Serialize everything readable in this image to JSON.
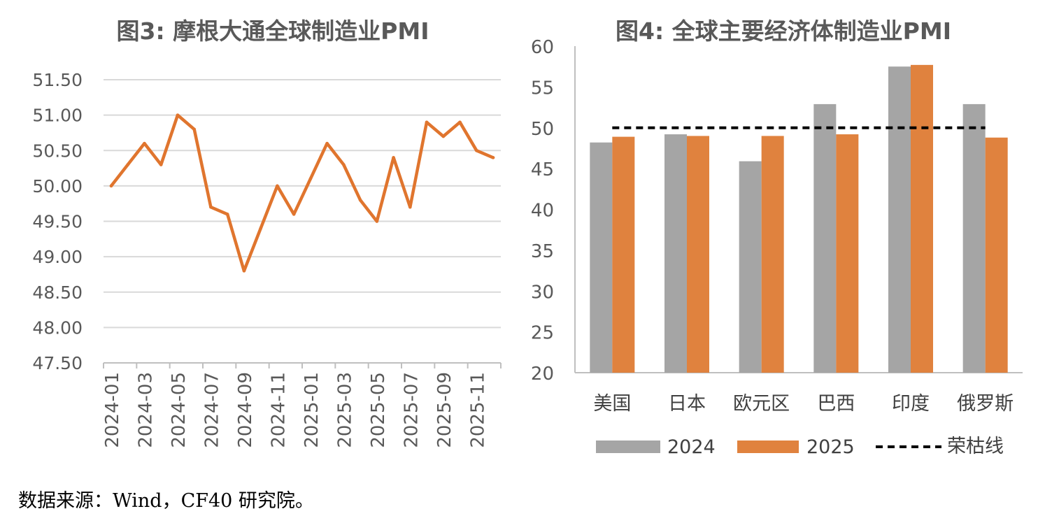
{
  "colors": {
    "line": "#E0752E",
    "bar2024": "#A5A5A5",
    "bar2025": "#E0823E",
    "threshold": "#000000",
    "grid": "#D9D9D9",
    "axis": "#BFBFBF",
    "text": "#595959"
  },
  "chart_data": [
    {
      "type": "line",
      "title": "图3: 摩根大通全球制造业PMI",
      "ylim": [
        47.5,
        51.5
      ],
      "yticks": [
        "47.50",
        "48.00",
        "48.50",
        "49.00",
        "49.50",
        "50.00",
        "50.50",
        "51.00",
        "51.50"
      ],
      "grid": true,
      "xtick_labels": [
        "2024-01",
        "2024-03",
        "2024-05",
        "2024-07",
        "2024-09",
        "2024-11",
        "2025-01",
        "2025-03",
        "2025-05",
        "2025-07",
        "2025-09",
        "2025-11"
      ],
      "x": [
        "2024-01",
        "2024-02",
        "2024-03",
        "2024-04",
        "2024-05",
        "2024-06",
        "2024-07",
        "2024-08",
        "2024-09",
        "2024-10",
        "2024-11",
        "2024-12",
        "2025-01",
        "2025-02",
        "2025-03",
        "2025-04",
        "2025-05",
        "2025-06",
        "2025-07",
        "2025-08",
        "2025-09",
        "2025-10",
        "2025-11",
        "2025-12"
      ],
      "values": [
        50.0,
        50.3,
        50.6,
        50.3,
        51.0,
        50.8,
        49.7,
        49.6,
        48.8,
        49.4,
        50.0,
        49.6,
        50.1,
        50.6,
        50.3,
        49.8,
        49.5,
        50.4,
        49.7,
        50.9,
        50.7,
        50.9,
        50.5,
        50.4
      ]
    },
    {
      "type": "bar",
      "title": "图4: 全球主要经济体制造业PMI",
      "ylim": [
        20,
        60
      ],
      "yticks": [
        "20",
        "25",
        "30",
        "35",
        "40",
        "45",
        "50",
        "55",
        "60"
      ],
      "grid": false,
      "categories": [
        "美国",
        "日本",
        "欧元区",
        "巴西",
        "印度",
        "俄罗斯"
      ],
      "series": [
        {
          "name": "2024",
          "values": [
            48.2,
            49.2,
            45.9,
            52.9,
            57.5,
            52.9
          ]
        },
        {
          "name": "2025",
          "values": [
            48.9,
            49.0,
            49.0,
            49.2,
            57.7,
            48.8
          ]
        }
      ],
      "threshold": {
        "name": "荣枯线",
        "value": 50
      },
      "legend": "bottom"
    }
  ],
  "source_note": "数据来源：Wind，CF40 研究院。"
}
